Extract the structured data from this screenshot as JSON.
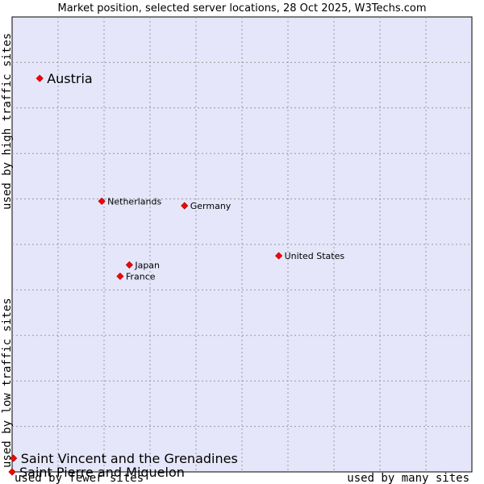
{
  "chart_data": {
    "type": "scatter",
    "title": "Market position, selected server locations, 28 Oct 2025, W3Techs.com",
    "xlabel_low": "used by fewer sites",
    "xlabel_high": "used by many sites",
    "ylabel_low": "used by low traffic sites",
    "ylabel_high": "used by high traffic sites",
    "xlim": [
      0,
      100
    ],
    "ylim": [
      0,
      100
    ],
    "grid": true,
    "marker_color": "#ff0000",
    "plot_background": "#e6e6fa",
    "points": [
      {
        "name": "Austria",
        "x": 6,
        "y": 86.5,
        "size": "large"
      },
      {
        "name": "Netherlands",
        "x": 19.5,
        "y": 59.5,
        "size": "small"
      },
      {
        "name": "Germany",
        "x": 37.5,
        "y": 58.5,
        "size": "small"
      },
      {
        "name": "United States",
        "x": 58,
        "y": 47.5,
        "size": "small"
      },
      {
        "name": "Japan",
        "x": 25.5,
        "y": 45.5,
        "size": "small"
      },
      {
        "name": "France",
        "x": 23.5,
        "y": 43,
        "size": "small"
      },
      {
        "name": "Saint Vincent and the Grenadines",
        "x": 0.3,
        "y": 3,
        "size": "large"
      },
      {
        "name": "Saint Pierre and Miquelon",
        "x": 0,
        "y": 0,
        "size": "large"
      }
    ]
  }
}
